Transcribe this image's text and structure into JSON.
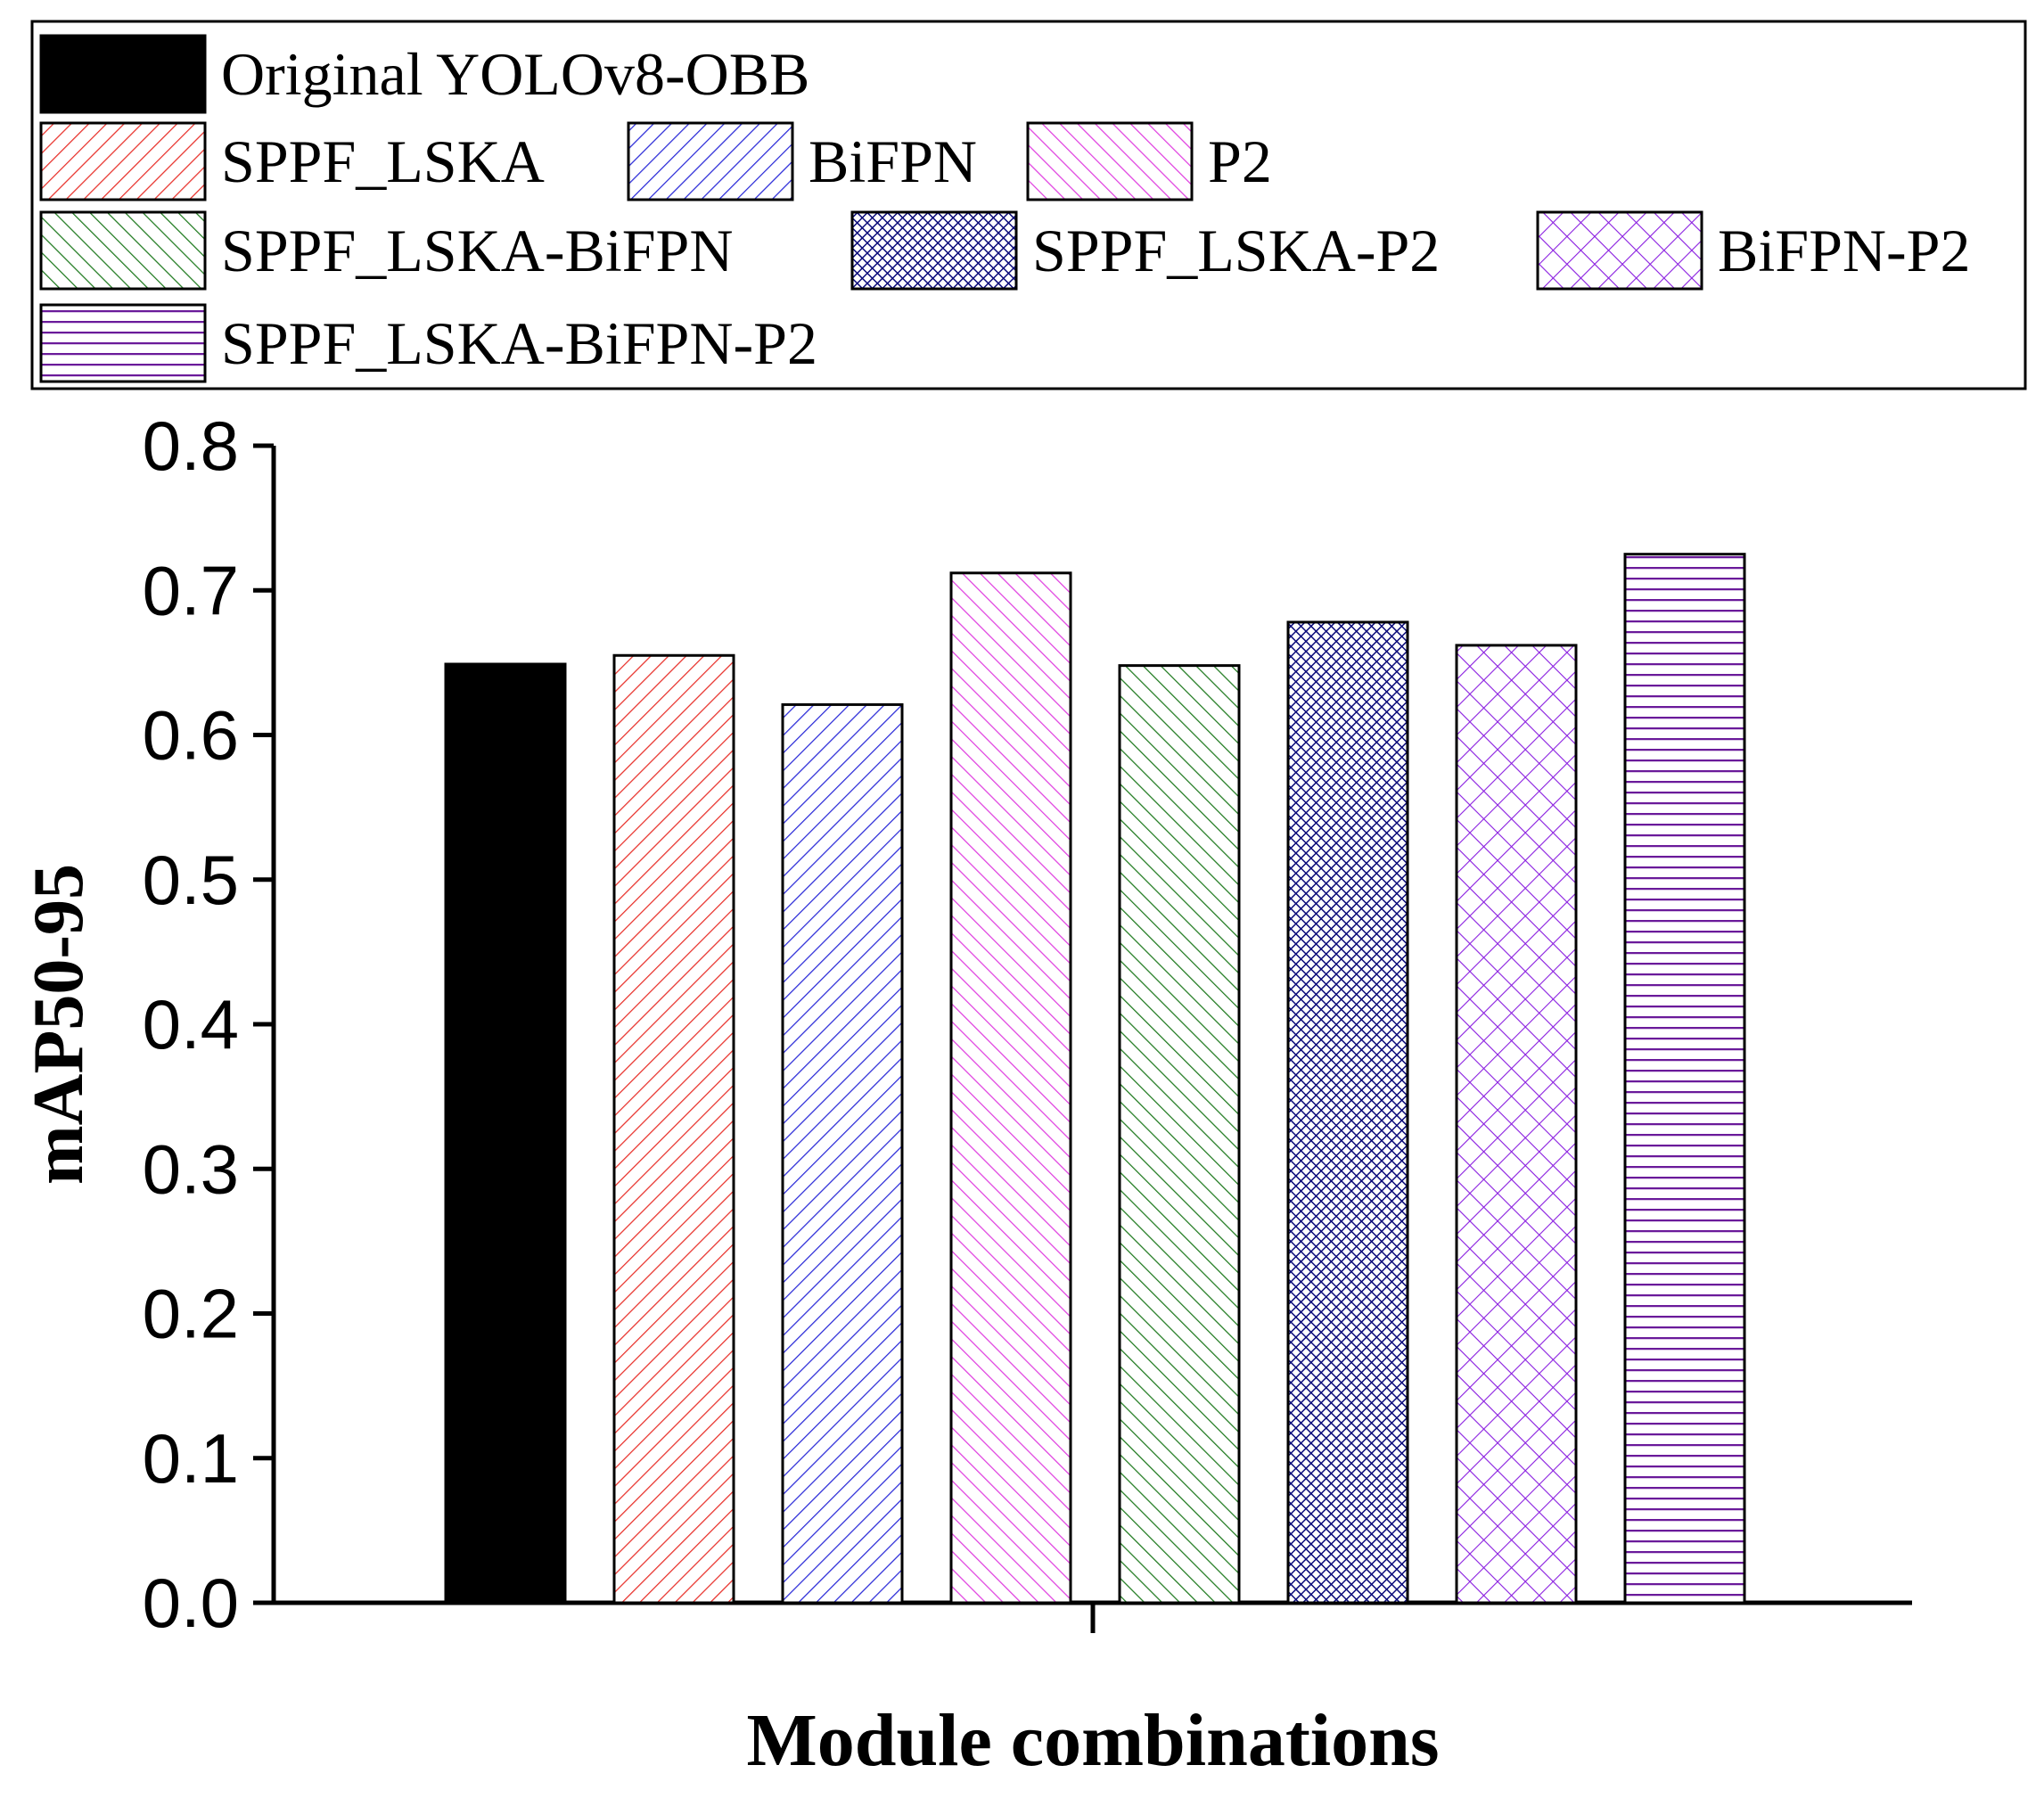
{
  "chart_data": {
    "type": "bar",
    "title": "",
    "xlabel": "Module combinations",
    "ylabel": "mAP50-95",
    "ylim": [
      0,
      0.8
    ],
    "yticks": [
      "0.0",
      "0.1",
      "0.2",
      "0.3",
      "0.4",
      "0.5",
      "0.6",
      "0.7",
      "0.8"
    ],
    "grid": false,
    "legend_position": "top",
    "series": [
      {
        "name": "Original YOLOv8-OBB",
        "value": 0.649,
        "color": "#000000",
        "pattern": "solid"
      },
      {
        "name": "SPPF_LSKA",
        "value": 0.655,
        "color": "#e8302a",
        "pattern": "diag-up"
      },
      {
        "name": "BiFPN",
        "value": 0.621,
        "color": "#2a2ad8",
        "pattern": "diag-up"
      },
      {
        "name": "P2",
        "value": 0.712,
        "color": "#e040e0",
        "pattern": "diag-down"
      },
      {
        "name": "SPPF_LSKA-BiFPN",
        "value": 0.648,
        "color": "#1f7a1f",
        "pattern": "diag-down"
      },
      {
        "name": "SPPF_LSKA-P2",
        "value": 0.678,
        "color": "#0a0a7a",
        "pattern": "dense-cross"
      },
      {
        "name": "BiFPN-P2",
        "value": 0.662,
        "color": "#8a1ee0",
        "pattern": "cross"
      },
      {
        "name": "SPPF_LSKA-BiFPN-P2",
        "value": 0.725,
        "color": "#6a1a9a",
        "pattern": "horizontal"
      }
    ]
  }
}
